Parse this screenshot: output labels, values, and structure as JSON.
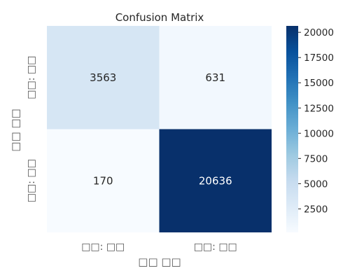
{
  "chart_data": {
    "type": "heatmap",
    "title": "Confusion Matrix",
    "xlabel": "□□ □□",
    "ylabel": "□□ □□",
    "x_tick_labels": [
      "□□: □□",
      "□□: □□"
    ],
    "y_tick_labels": [
      "□□: □□",
      "□□: □□"
    ],
    "values": [
      [
        3563,
        631
      ],
      [
        170,
        20636
      ]
    ],
    "colormap": "Blues",
    "colorbar": {
      "range": [
        170,
        20636
      ],
      "ticks": [
        2500,
        5000,
        7500,
        10000,
        12500,
        15000,
        17500,
        20000
      ]
    }
  }
}
